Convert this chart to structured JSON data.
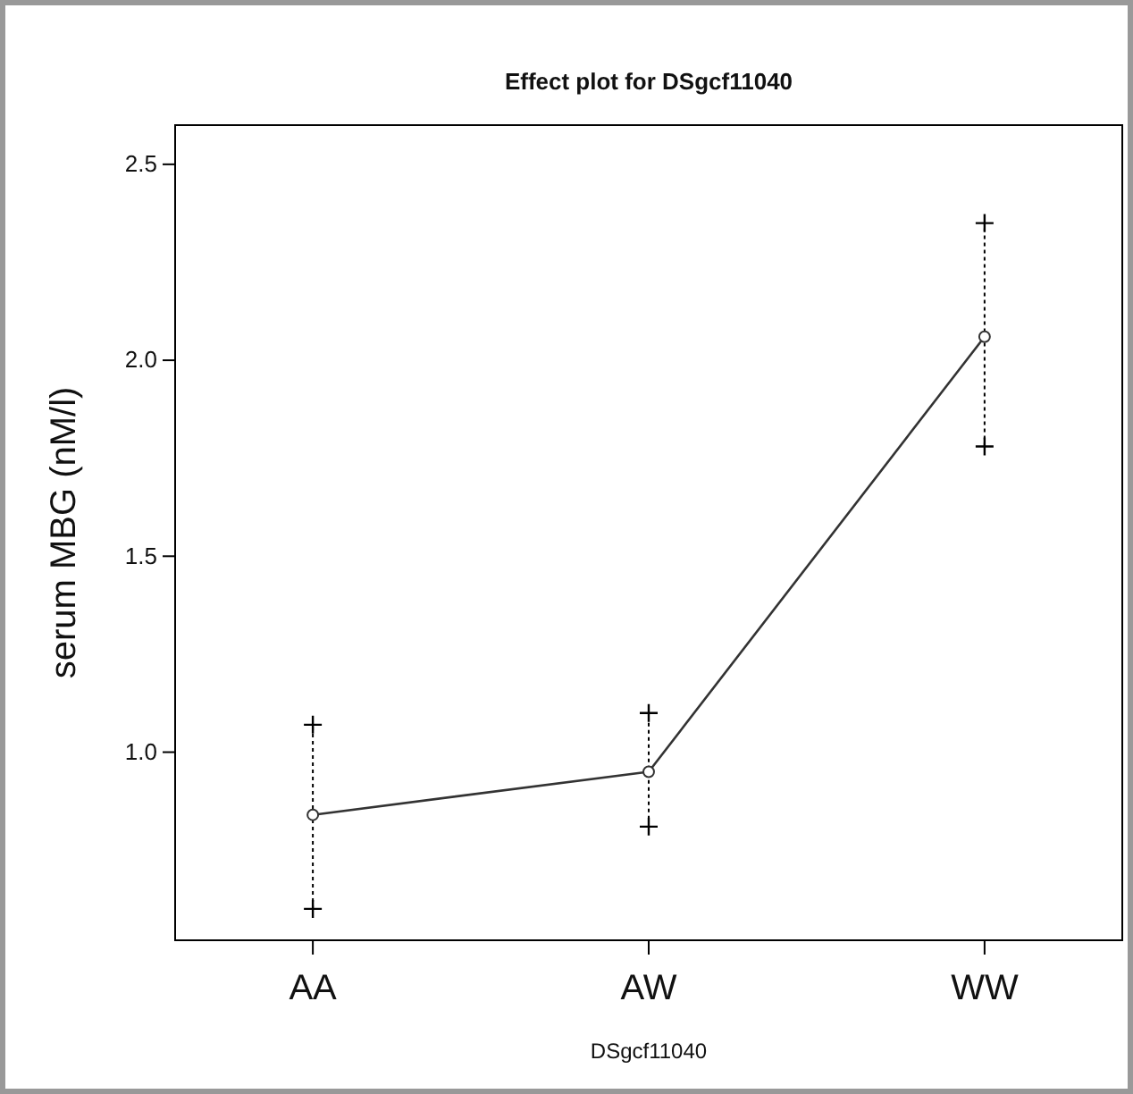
{
  "chart_data": {
    "type": "line",
    "title": "Effect plot for DSgcf11040",
    "xlabel": "DSgcf11040",
    "ylabel": "serum MBG (nM/l)",
    "categories": [
      "AA",
      "AW",
      "WW"
    ],
    "values": [
      0.84,
      0.95,
      2.06
    ],
    "errors": [
      [
        0.6,
        1.07
      ],
      [
        0.81,
        1.1
      ],
      [
        1.78,
        2.35
      ]
    ],
    "color": "#333333",
    "marker": "circle",
    "line_style": "solid",
    "ylim": [
      0.52,
      2.6
    ],
    "yticks": [
      {
        "value": 1.0,
        "label": "1.0"
      },
      {
        "value": 1.5,
        "label": "1.5"
      },
      {
        "value": 2.0,
        "label": "2.0"
      },
      {
        "value": 2.5,
        "label": "2.5"
      }
    ],
    "grid": false
  }
}
